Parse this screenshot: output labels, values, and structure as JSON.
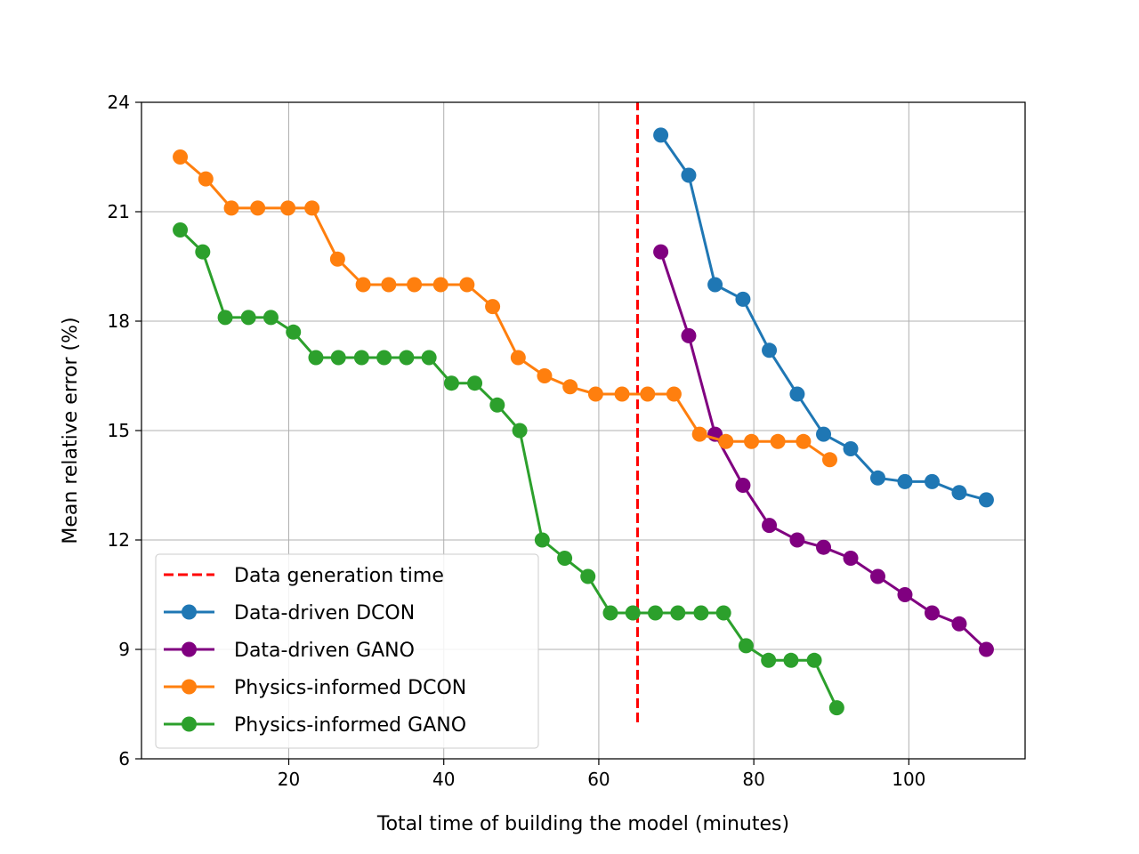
{
  "chart_data": {
    "type": "line",
    "title": "",
    "xlabel": "Total time of building the model (minutes)",
    "ylabel": "Mean relative error (%)",
    "xlim": [
      1,
      115
    ],
    "ylim": [
      6,
      24
    ],
    "xticks": [
      20,
      40,
      60,
      80,
      100
    ],
    "yticks": [
      6,
      9,
      12,
      15,
      18,
      21,
      24
    ],
    "grid": true,
    "legend_position": "lower-left",
    "vline": {
      "name": "Data generation time",
      "x": 65,
      "y_range": [
        7,
        24
      ],
      "color": "#ff0000",
      "style": "dashed"
    },
    "series": [
      {
        "name": "Data-driven DCON",
        "color": "#1f77b4",
        "x": [
          68,
          71.6,
          75,
          78.6,
          82,
          85.6,
          89,
          92.5,
          96,
          99.5,
          103,
          106.5,
          110
        ],
        "y": [
          23.1,
          22.0,
          19.0,
          18.6,
          17.2,
          16.0,
          14.9,
          14.5,
          13.7,
          13.6,
          13.6,
          13.3,
          13.1
        ]
      },
      {
        "name": "Data-driven GANO",
        "color": "#800080",
        "x": [
          68,
          71.6,
          75,
          78.6,
          82,
          85.6,
          89,
          92.5,
          96,
          99.5,
          103,
          106.5,
          110
        ],
        "y": [
          19.9,
          17.6,
          14.9,
          13.5,
          12.4,
          12.0,
          11.8,
          11.5,
          11.0,
          10.5,
          10.0,
          9.7,
          9.0
        ]
      },
      {
        "name": "Physics-informed DCON",
        "color": "#ff7f0e",
        "x": [
          6,
          9.3,
          12.6,
          16,
          19.9,
          23,
          26.3,
          29.6,
          32.9,
          36.2,
          39.6,
          43,
          46.3,
          49.6,
          53,
          56.3,
          59.6,
          63,
          66.3,
          69.7,
          73,
          76.4,
          79.7,
          83.1,
          86.4,
          89.8
        ],
        "y": [
          22.5,
          21.9,
          21.1,
          21.1,
          21.1,
          21.1,
          19.7,
          19.0,
          19.0,
          19.0,
          19.0,
          19.0,
          18.4,
          17.0,
          16.5,
          16.2,
          16.0,
          16.0,
          16.0,
          16.0,
          14.9,
          14.7,
          14.7,
          14.7,
          14.7,
          14.2
        ]
      },
      {
        "name": "Physics-informed GANO",
        "color": "#2ca02c",
        "x": [
          6,
          8.9,
          11.8,
          14.8,
          17.7,
          20.6,
          23.5,
          26.4,
          29.4,
          32.3,
          35.2,
          38.1,
          41,
          44,
          46.9,
          49.8,
          52.7,
          55.6,
          58.6,
          61.5,
          64.4,
          67.3,
          70.2,
          73.2,
          76.1,
          79,
          81.9,
          84.8,
          87.8,
          90.7
        ],
        "y": [
          20.5,
          19.9,
          18.1,
          18.1,
          18.1,
          17.7,
          17.0,
          17.0,
          17.0,
          17.0,
          17.0,
          17.0,
          16.3,
          16.3,
          15.7,
          15.0,
          12.0,
          11.5,
          11.0,
          10.0,
          10.0,
          10.0,
          10.0,
          10.0,
          10.0,
          9.1,
          8.7,
          8.7,
          8.7,
          7.4
        ]
      }
    ]
  }
}
